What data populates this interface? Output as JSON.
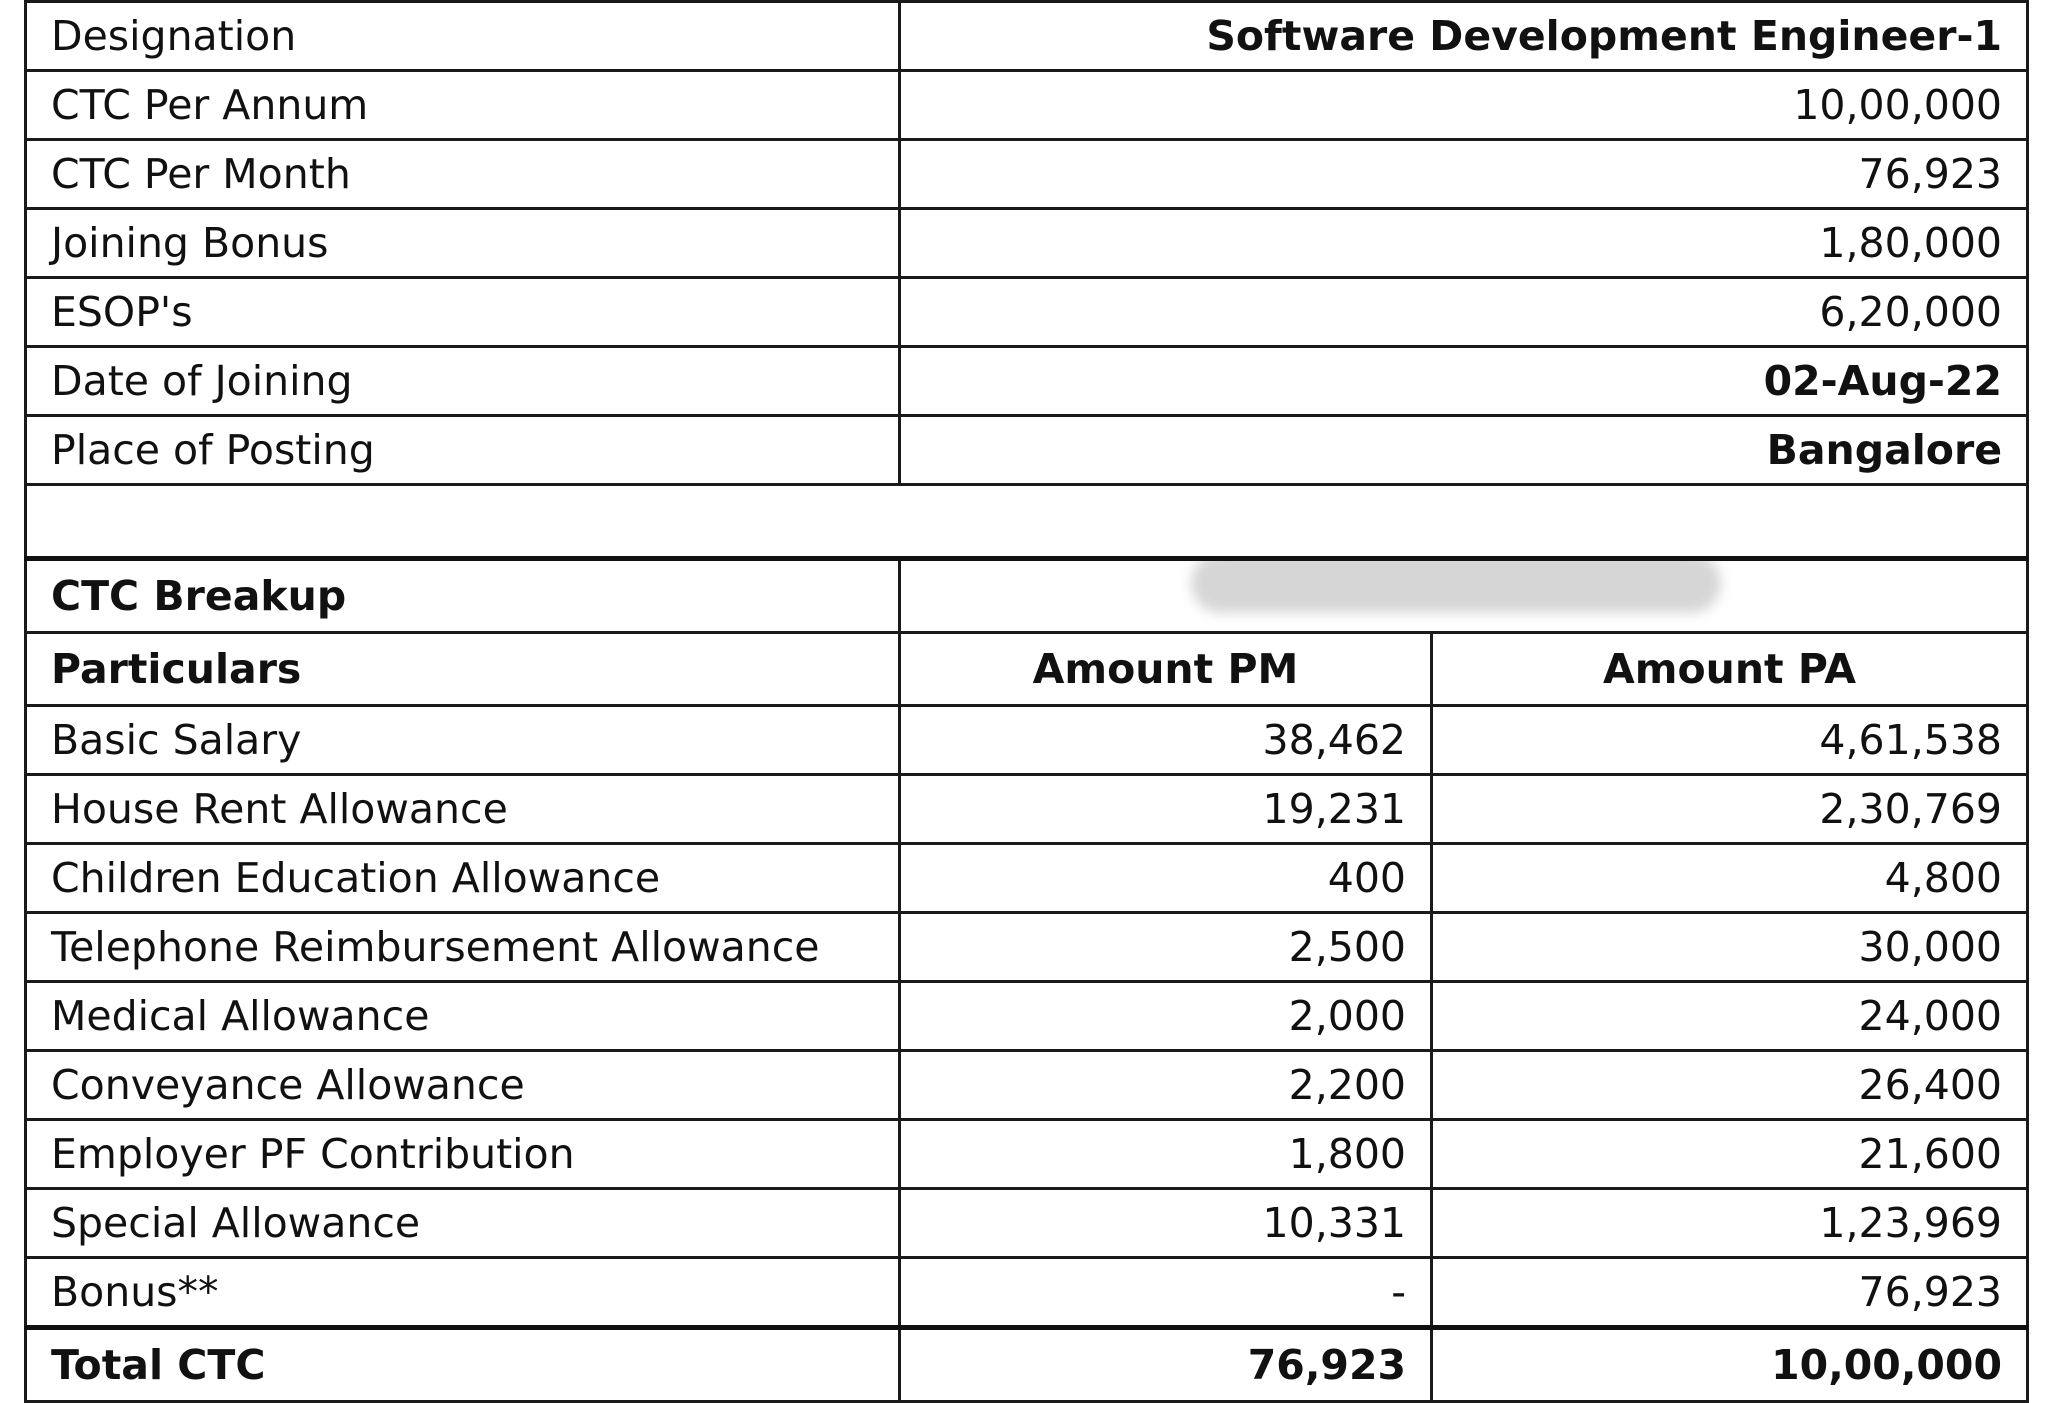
{
  "offer": {
    "rows": [
      {
        "label": "Designation",
        "value": "Software Development Engineer-1",
        "bold": true
      },
      {
        "label": "CTC Per Annum",
        "value": "10,00,000",
        "bold": false
      },
      {
        "label": "CTC Per Month",
        "value": "76,923",
        "bold": false
      },
      {
        "label": "Joining Bonus",
        "value": "1,80,000",
        "bold": false
      },
      {
        "label": "ESOP's",
        "value": "6,20,000",
        "bold": false
      },
      {
        "label": "Date of Joining",
        "value": "02-Aug-22",
        "bold": true
      },
      {
        "label": "Place of Posting",
        "value": "Bangalore",
        "bold": true
      }
    ]
  },
  "breakup": {
    "title": "CTC Breakup",
    "headers": {
      "particulars": "Particulars",
      "pm": "Amount PM",
      "pa": "Amount PA"
    },
    "rows": [
      {
        "name": "Basic Salary",
        "pm": "38,462",
        "pa": "4,61,538"
      },
      {
        "name": "House Rent Allowance",
        "pm": "19,231",
        "pa": "2,30,769"
      },
      {
        "name": "Children Education Allowance",
        "pm": "400",
        "pa": "4,800"
      },
      {
        "name": "Telephone Reimbursement Allowance",
        "pm": "2,500",
        "pa": "30,000"
      },
      {
        "name": "Medical Allowance",
        "pm": "2,000",
        "pa": "24,000"
      },
      {
        "name": "Conveyance Allowance",
        "pm": "2,200",
        "pa": "26,400"
      },
      {
        "name": "Employer PF Contribution",
        "pm": "1,800",
        "pa": "21,600"
      },
      {
        "name": "Special Allowance",
        "pm": "10,331",
        "pa": "1,23,969"
      },
      {
        "name": "Bonus**",
        "pm": "-",
        "pa": "76,923"
      }
    ],
    "total": {
      "name": "Total CTC",
      "pm": "76,923",
      "pa": "10,00,000"
    }
  }
}
